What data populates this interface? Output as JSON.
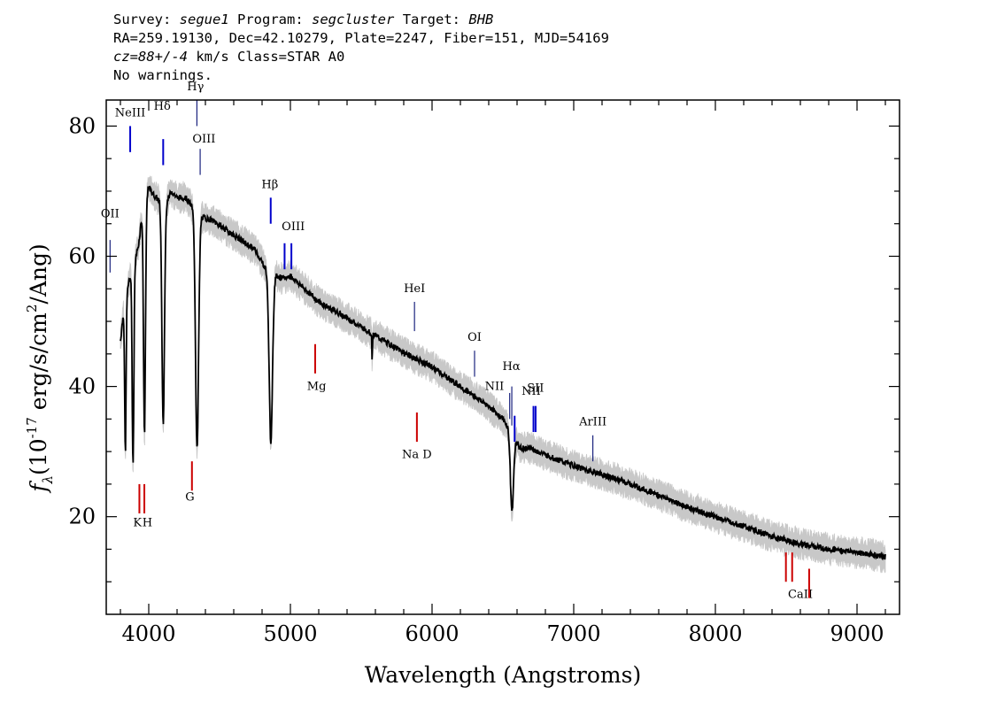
{
  "header": {
    "survey_label": "Survey:",
    "survey": "segue1",
    "program_label": "Program:",
    "program": "segcluster",
    "target_label": "Target:",
    "target": "BHB",
    "line2": "RA=259.19130, Dec=42.10279, Plate=2247, Fiber=151, MJD=54169",
    "cz": "cz=88+/-4",
    "cz_rest": " km/s Class=STAR A0",
    "line4": "No warnings."
  },
  "chart_data": {
    "type": "line",
    "xlabel": "Wavelength (Angstroms)",
    "ylabel_prefix": "f",
    "ylabel_sub": "λ",
    "ylabel_unit": "(10",
    "ylabel_exp": "-17",
    "ylabel_rest": " erg/s/cm",
    "ylabel_exp2": "2",
    "ylabel_tail": "/Ang)",
    "xlim": [
      3700,
      9300
    ],
    "ylim": [
      5,
      84
    ],
    "xticks": [
      {
        "v": 4000,
        "label": "4000"
      },
      {
        "v": 5000,
        "label": "5000"
      },
      {
        "v": 6000,
        "label": "6000"
      },
      {
        "v": 7000,
        "label": "7000"
      },
      {
        "v": 8000,
        "label": "8000"
      },
      {
        "v": 9000,
        "label": "9000"
      }
    ],
    "yticks": [
      {
        "v": 20,
        "label": "20"
      },
      {
        "v": 40,
        "label": "40"
      },
      {
        "v": 60,
        "label": "60"
      },
      {
        "v": 80,
        "label": "80"
      }
    ],
    "continuum": [
      [
        3800,
        47
      ],
      [
        3830,
        53
      ],
      [
        3870,
        57
      ],
      [
        3900,
        59
      ],
      [
        3930,
        62
      ],
      [
        3960,
        68
      ],
      [
        4000,
        70.5
      ],
      [
        4050,
        69
      ],
      [
        4120,
        68
      ],
      [
        4160,
        70
      ],
      [
        4200,
        69
      ],
      [
        4260,
        69
      ],
      [
        4330,
        67
      ],
      [
        4380,
        66
      ],
      [
        4450,
        65.5
      ],
      [
        4550,
        64
      ],
      [
        4650,
        62.5
      ],
      [
        4750,
        61
      ],
      [
        4830,
        58
      ],
      [
        4950,
        56.5
      ],
      [
        5000,
        57
      ],
      [
        5100,
        55
      ],
      [
        5200,
        53
      ],
      [
        5400,
        50.5
      ],
      [
        5600,
        47.8
      ],
      [
        5800,
        45.2
      ],
      [
        6000,
        43
      ],
      [
        6200,
        40
      ],
      [
        6400,
        37
      ],
      [
        6500,
        35
      ],
      [
        6560,
        33
      ],
      [
        6620,
        30.5
      ],
      [
        6700,
        30.5
      ],
      [
        6800,
        29.5
      ],
      [
        7000,
        27.8
      ],
      [
        7200,
        26.5
      ],
      [
        7400,
        25
      ],
      [
        7600,
        23.3
      ],
      [
        7800,
        21.5
      ],
      [
        8000,
        20
      ],
      [
        8200,
        18.5
      ],
      [
        8400,
        17
      ],
      [
        8600,
        15.8
      ],
      [
        8800,
        15
      ],
      [
        9000,
        14.5
      ],
      [
        9200,
        13.8
      ]
    ],
    "absorption_lines": [
      {
        "center": 3835,
        "depth": 24,
        "sigma": 5
      },
      {
        "center": 3889,
        "depth": 30,
        "sigma": 6
      },
      {
        "center": 3970,
        "depth": 36,
        "sigma": 7
      },
      {
        "center": 4102,
        "depth": 34,
        "sigma": 9
      },
      {
        "center": 4341,
        "depth": 36,
        "sigma": 11
      },
      {
        "center": 4862,
        "depth": 26,
        "sigma": 12
      },
      {
        "center": 6564,
        "depth": 12,
        "sigma": 11
      },
      {
        "center": 5577,
        "depth": 5,
        "sigma": 2
      }
    ],
    "noise": {
      "main": 0.45,
      "band_low": 1.6,
      "band_high": 1.6
    },
    "line_markers": [
      {
        "wave": 3727,
        "y0": 57.5,
        "y1": 62.5,
        "color": "#1a237e",
        "label": "OII",
        "lx": 3727,
        "ly": 66
      },
      {
        "wave": 3869,
        "y0": 76,
        "y1": 80,
        "color": "#0000cc",
        "label": "NeIII",
        "lx": 3869,
        "ly": 81.5
      },
      {
        "wave": 4102,
        "y0": 74,
        "y1": 78,
        "color": "#0000cc",
        "label": "Hδ",
        "lx": 4095,
        "ly": 82.5
      },
      {
        "wave": 4340,
        "y0": 80,
        "y1": 84,
        "color": "#1a237e",
        "label": "Hγ",
        "lx": 4330,
        "ly": 85.5
      },
      {
        "wave": 4363,
        "y0": 72.5,
        "y1": 76.5,
        "color": "#1a237e",
        "label": "OIII",
        "lx": 4390,
        "ly": 77.5
      },
      {
        "wave": 4861,
        "y0": 65,
        "y1": 69,
        "color": "#0000cc",
        "label": "Hβ",
        "lx": 4855,
        "ly": 70.5
      },
      {
        "wave": 4959,
        "y0": 58,
        "y1": 62,
        "color": "#0000cc",
        "label": "OIII",
        "lx": 5020,
        "ly": 64
      },
      {
        "wave": 5007,
        "y0": 58,
        "y1": 62,
        "color": "#0000cc",
        "label": "",
        "lx": 0,
        "ly": 0
      },
      {
        "wave": 5175,
        "y0": 42,
        "y1": 46.5,
        "color": "#cc0000",
        "label": "Mg",
        "lx": 5185,
        "ly": 39.5
      },
      {
        "wave": 5876,
        "y0": 48.5,
        "y1": 53,
        "color": "#1a237e",
        "label": "HeI",
        "lx": 5876,
        "ly": 54.5
      },
      {
        "wave": 5893,
        "y0": 31.5,
        "y1": 36,
        "color": "#cc0000",
        "label": "Na D",
        "lx": 5893,
        "ly": 29
      },
      {
        "wave": 6300,
        "y0": 41.5,
        "y1": 45.5,
        "color": "#1a237e",
        "label": "OI",
        "lx": 6300,
        "ly": 47
      },
      {
        "wave": 6548,
        "y0": 35,
        "y1": 39,
        "color": "#1a237e",
        "label": "NII",
        "lx": 6440,
        "ly": 39.5
      },
      {
        "wave": 6563,
        "y0": 34,
        "y1": 40,
        "color": "#1a237e",
        "label": "Hα",
        "lx": 6560,
        "ly": 42.5
      },
      {
        "wave": 6583,
        "y0": 31.5,
        "y1": 35.5,
        "color": "#0000cc",
        "label": "",
        "lx": 0,
        "ly": 0
      },
      {
        "wave": 6716,
        "y0": 33,
        "y1": 37,
        "color": "#0000cc",
        "label": "SII",
        "lx": 6730,
        "ly": 39.2
      },
      {
        "wave": 6731,
        "y0": 33,
        "y1": 37,
        "color": "#0000cc",
        "label": "NII",
        "lx": 6700,
        "ly": 38.7
      },
      {
        "wave": 7135,
        "y0": 28.5,
        "y1": 32.5,
        "color": "#1a237e",
        "label": "ArIII",
        "lx": 7135,
        "ly": 34
      },
      {
        "wave": 3934,
        "y0": 20.5,
        "y1": 25,
        "color": "#cc0000",
        "label": "K",
        "lx": 3920,
        "ly": 18.5
      },
      {
        "wave": 3969,
        "y0": 20.5,
        "y1": 25,
        "color": "#cc0000",
        "label": "H",
        "lx": 3990,
        "ly": 18.5
      },
      {
        "wave": 4305,
        "y0": 24,
        "y1": 28.5,
        "color": "#cc0000",
        "label": "G",
        "lx": 4290,
        "ly": 22.5
      },
      {
        "wave": 8498,
        "y0": 10,
        "y1": 14.5,
        "color": "#cc0000",
        "label": "CaII",
        "lx": 8600,
        "ly": 7.5
      },
      {
        "wave": 8542,
        "y0": 10,
        "y1": 14.5,
        "color": "#cc0000",
        "label": "",
        "lx": 0,
        "ly": 0
      },
      {
        "wave": 8662,
        "y0": 7.5,
        "y1": 12,
        "color": "#cc0000",
        "label": "",
        "lx": 0,
        "ly": 0
      }
    ]
  }
}
